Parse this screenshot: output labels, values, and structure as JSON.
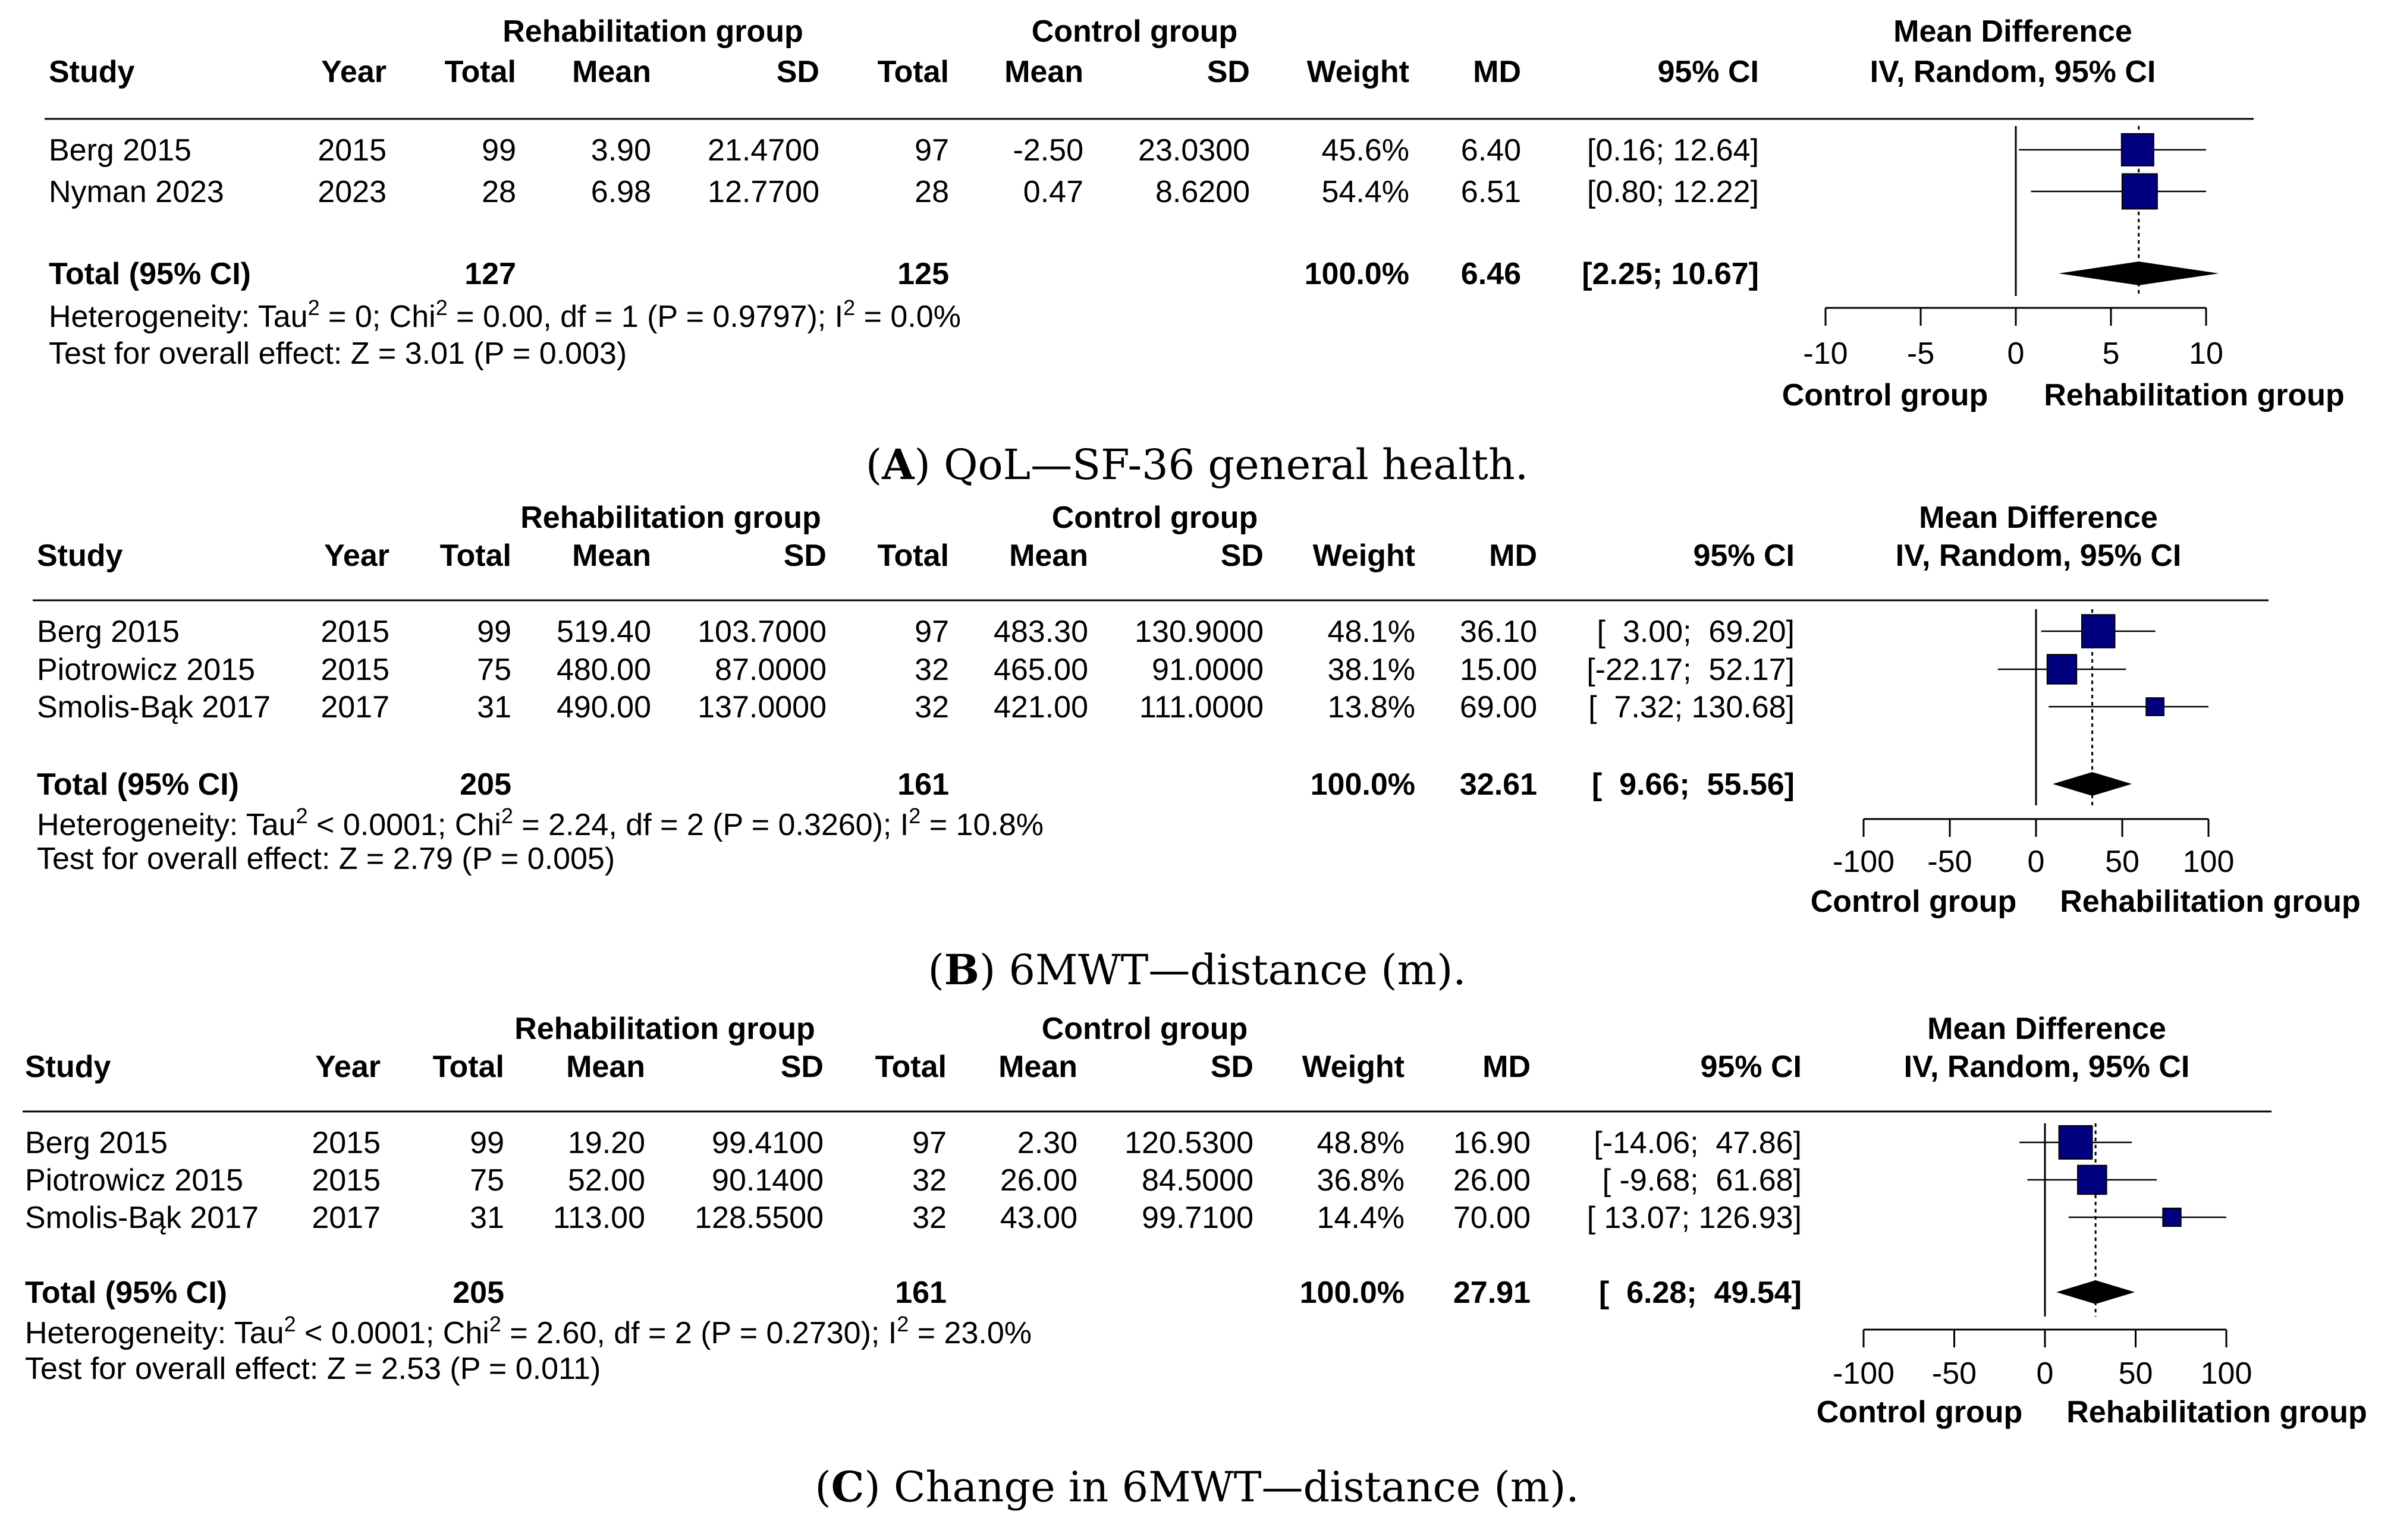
{
  "chart_data": [
    {
      "type": "forest",
      "panel_letter": "A",
      "caption": "QoL—SF-36 general health.",
      "headers": {
        "rehab_group": "Rehabilitation group",
        "control_group": "Control group",
        "mean_difference": "Mean Difference",
        "method": "IV, Random, 95% CI",
        "study": "Study",
        "year": "Year",
        "total": "Total",
        "mean": "Mean",
        "sd": "SD",
        "weight": "Weight",
        "md": "MD",
        "ci": "95% CI"
      },
      "studies": [
        {
          "study": "Berg 2015",
          "year": "2015",
          "r_total": "99",
          "r_mean": "3.90",
          "r_sd": "21.4700",
          "c_total": "97",
          "c_mean": "-2.50",
          "c_sd": "23.0300",
          "weight": "45.6%",
          "md": "6.40",
          "ci": "[0.16; 12.64]",
          "md_value": 6.4,
          "ci_low": 0.16,
          "ci_high": 12.64,
          "weight_value": 45.6
        },
        {
          "study": "Nyman 2023",
          "year": "2023",
          "r_total": "28",
          "r_mean": "6.98",
          "r_sd": "12.7700",
          "c_total": "28",
          "c_mean": "0.47",
          "c_sd": "8.6200",
          "weight": "54.4%",
          "md": "6.51",
          "ci": "[0.80; 12.22]",
          "md_value": 6.51,
          "ci_low": 0.8,
          "ci_high": 12.22,
          "weight_value": 54.4
        }
      ],
      "total": {
        "label": "Total (95% CI)",
        "r_total": "127",
        "c_total": "125",
        "weight": "100.0%",
        "md": "6.46",
        "ci": "[2.25; 10.67]",
        "md_value": 6.46,
        "ci_low": 2.25,
        "ci_high": 10.67
      },
      "heterogeneity": {
        "prefix": "Heterogeneity: Tau",
        "tau": " = 0; Chi",
        "chi": " = 0.00, df = 1 (P = 0.9797); I",
        "i2": " = 0.0%"
      },
      "overall_effect": "Test for overall effect: Z = 3.01 (P = 0.003)",
      "axis": {
        "min": -10,
        "max": 10,
        "ticks": [
          -10,
          -5,
          0,
          5,
          10
        ],
        "tick_labels": [
          "-10",
          "-5",
          "0",
          "5",
          "10"
        ],
        "left_label": "Control group",
        "right_label": "Rehabilitation group"
      }
    },
    {
      "type": "forest",
      "panel_letter": "B",
      "caption": "6MWT—distance (m).",
      "headers": {
        "rehab_group": "Rehabilitation group",
        "control_group": "Control group",
        "mean_difference": "Mean Difference",
        "method": "IV, Random, 95% CI",
        "study": "Study",
        "year": "Year",
        "total": "Total",
        "mean": "Mean",
        "sd": "SD",
        "weight": "Weight",
        "md": "MD",
        "ci": "95% CI"
      },
      "studies": [
        {
          "study": "Berg 2015",
          "year": "2015",
          "r_total": "99",
          "r_mean": "519.40",
          "r_sd": "103.7000",
          "c_total": "97",
          "c_mean": "483.30",
          "c_sd": "130.9000",
          "weight": "48.1%",
          "md": "36.10",
          "ci": "[  3.00;  69.20]",
          "md_value": 36.1,
          "ci_low": 3.0,
          "ci_high": 69.2,
          "weight_value": 48.1
        },
        {
          "study": "Piotrowicz 2015",
          "year": "2015",
          "r_total": "75",
          "r_mean": "480.00",
          "r_sd": "87.0000",
          "c_total": "32",
          "c_mean": "465.00",
          "c_sd": "91.0000",
          "weight": "38.1%",
          "md": "15.00",
          "ci": "[-22.17;  52.17]",
          "md_value": 15.0,
          "ci_low": -22.17,
          "ci_high": 52.17,
          "weight_value": 38.1
        },
        {
          "study": "Smolis-Bąk 2017",
          "year": "2017",
          "r_total": "31",
          "r_mean": "490.00",
          "r_sd": "137.0000",
          "c_total": "32",
          "c_mean": "421.00",
          "c_sd": "111.0000",
          "weight": "13.8%",
          "md": "69.00",
          "ci": "[  7.32; 130.68]",
          "md_value": 69.0,
          "ci_low": 7.32,
          "ci_high": 130.68,
          "weight_value": 13.8
        }
      ],
      "total": {
        "label": "Total (95% CI)",
        "r_total": "205",
        "c_total": "161",
        "weight": "100.0%",
        "md": "32.61",
        "ci": "[  9.66;  55.56]",
        "md_value": 32.61,
        "ci_low": 9.66,
        "ci_high": 55.56
      },
      "heterogeneity": {
        "prefix": "Heterogeneity: Tau",
        "tau": " < 0.0001; Chi",
        "chi": " = 2.24, df = 2 (P = 0.3260); I",
        "i2": " = 10.8%"
      },
      "overall_effect": "Test for overall effect: Z = 2.79 (P = 0.005)",
      "axis": {
        "min": -100,
        "max": 100,
        "ticks": [
          -100,
          -50,
          0,
          50,
          100
        ],
        "tick_labels": [
          "-100",
          "-50",
          "0",
          "50",
          "100"
        ],
        "left_label": "Control group",
        "right_label": "Rehabilitation group"
      }
    },
    {
      "type": "forest",
      "panel_letter": "C",
      "caption": "Change in 6MWT—distance (m).",
      "headers": {
        "rehab_group": "Rehabilitation group",
        "control_group": "Control group",
        "mean_difference": "Mean Difference",
        "method": "IV, Random, 95% CI",
        "study": "Study",
        "year": "Year",
        "total": "Total",
        "mean": "Mean",
        "sd": "SD",
        "weight": "Weight",
        "md": "MD",
        "ci": "95% CI"
      },
      "studies": [
        {
          "study": "Berg 2015",
          "year": "2015",
          "r_total": "99",
          "r_mean": "19.20",
          "r_sd": "99.4100",
          "c_total": "97",
          "c_mean": "2.30",
          "c_sd": "120.5300",
          "weight": "48.8%",
          "md": "16.90",
          "ci": "[-14.06;  47.86]",
          "md_value": 16.9,
          "ci_low": -14.06,
          "ci_high": 47.86,
          "weight_value": 48.8
        },
        {
          "study": "Piotrowicz 2015",
          "year": "2015",
          "r_total": "75",
          "r_mean": "52.00",
          "r_sd": "90.1400",
          "c_total": "32",
          "c_mean": "26.00",
          "c_sd": "84.5000",
          "weight": "36.8%",
          "md": "26.00",
          "ci": "[ -9.68;  61.68]",
          "md_value": 26.0,
          "ci_low": -9.68,
          "ci_high": 61.68,
          "weight_value": 36.8
        },
        {
          "study": "Smolis-Bąk 2017",
          "year": "2017",
          "r_total": "31",
          "r_mean": "113.00",
          "r_sd": "128.5500",
          "c_total": "32",
          "c_mean": "43.00",
          "c_sd": "99.7100",
          "weight": "14.4%",
          "md": "70.00",
          "ci": "[ 13.07; 126.93]",
          "md_value": 70.0,
          "ci_low": 13.07,
          "ci_high": 126.93,
          "weight_value": 14.4
        }
      ],
      "total": {
        "label": "Total (95% CI)",
        "r_total": "205",
        "c_total": "161",
        "weight": "100.0%",
        "md": "27.91",
        "ci": "[  6.28;  49.54]",
        "md_value": 27.91,
        "ci_low": 6.28,
        "ci_high": 49.54
      },
      "heterogeneity": {
        "prefix": "Heterogeneity: Tau",
        "tau": " < 0.0001; Chi",
        "chi": " = 2.60, df = 2 (P = 0.2730); I",
        "i2": " = 23.0%"
      },
      "overall_effect": "Test for overall effect: Z = 2.53 (P = 0.011)",
      "axis": {
        "min": -100,
        "max": 100,
        "ticks": [
          -100,
          -50,
          0,
          50,
          100
        ],
        "tick_labels": [
          "-100",
          "-50",
          "0",
          "50",
          "100"
        ],
        "left_label": "Control group",
        "right_label": "Rehabilitation group"
      }
    }
  ],
  "colors": {
    "marker": "#000080",
    "diamond": "#000000",
    "text": "#000000"
  }
}
